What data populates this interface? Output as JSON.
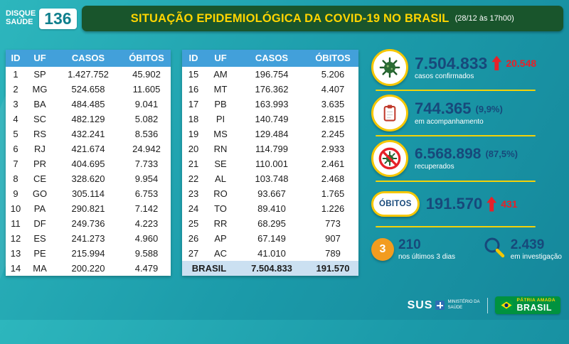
{
  "header": {
    "hotline_line1": "DISQUE",
    "hotline_line2": "SAÚDE",
    "hotline_number": "136",
    "title": "SITUAÇÃO EPIDEMIOLÓGICA DA COVID-19 NO BRASIL",
    "timestamp": "(28/12 às 17h00)"
  },
  "chart_data": {
    "type": "table",
    "title": "SITUAÇÃO EPIDEMIOLÓGICA DA COVID-19 NO BRASIL",
    "columns": [
      "ID",
      "UF",
      "CASOS",
      "ÓBITOS"
    ],
    "left_table": {
      "rows": [
        [
          "1",
          "SP",
          "1.427.752",
          "45.902"
        ],
        [
          "2",
          "MG",
          "524.658",
          "11.605"
        ],
        [
          "3",
          "BA",
          "484.485",
          "9.041"
        ],
        [
          "4",
          "SC",
          "482.129",
          "5.082"
        ],
        [
          "5",
          "RS",
          "432.241",
          "8.536"
        ],
        [
          "6",
          "RJ",
          "421.674",
          "24.942"
        ],
        [
          "7",
          "PR",
          "404.695",
          "7.733"
        ],
        [
          "8",
          "CE",
          "328.620",
          "9.954"
        ],
        [
          "9",
          "GO",
          "305.114",
          "6.753"
        ],
        [
          "10",
          "PA",
          "290.821",
          "7.142"
        ],
        [
          "11",
          "DF",
          "249.736",
          "4.223"
        ],
        [
          "12",
          "ES",
          "241.273",
          "4.960"
        ],
        [
          "13",
          "PE",
          "215.994",
          "9.588"
        ],
        [
          "14",
          "MA",
          "200.220",
          "4.479"
        ]
      ]
    },
    "right_table": {
      "rows": [
        [
          "15",
          "AM",
          "196.754",
          "5.206"
        ],
        [
          "16",
          "MT",
          "176.362",
          "4.407"
        ],
        [
          "17",
          "PB",
          "163.993",
          "3.635"
        ],
        [
          "18",
          "PI",
          "140.749",
          "2.815"
        ],
        [
          "19",
          "MS",
          "129.484",
          "2.245"
        ],
        [
          "20",
          "RN",
          "114.799",
          "2.933"
        ],
        [
          "21",
          "SE",
          "110.001",
          "2.461"
        ],
        [
          "22",
          "AL",
          "103.748",
          "2.468"
        ],
        [
          "23",
          "RO",
          "93.667",
          "1.765"
        ],
        [
          "24",
          "TO",
          "89.410",
          "1.226"
        ],
        [
          "25",
          "RR",
          "68.295",
          "773"
        ],
        [
          "26",
          "AP",
          "67.149",
          "907"
        ],
        [
          "27",
          "AC",
          "41.010",
          "789"
        ]
      ],
      "total": {
        "label": "BRASIL",
        "casos": "7.504.833",
        "obitos": "191.570"
      }
    },
    "summary": [
      {
        "icon": "virus-icon",
        "value": "7.504.833",
        "delta": "20.548",
        "caption": "casos confirmados"
      },
      {
        "icon": "clipboard-icon",
        "value": "744.365",
        "percent": "(9,9%)",
        "caption": "em acompanhamento"
      },
      {
        "icon": "recovered-icon",
        "value": "6.568.898",
        "percent": "(87,5%)",
        "caption": "recuperados"
      },
      {
        "icon": "obitos-badge",
        "label": "ÓBITOS",
        "value": "191.570",
        "delta": "431"
      },
      {
        "icon": "last-3-days-icon",
        "badge": "3",
        "value": "210",
        "caption": "nos últimos 3 dias"
      },
      {
        "icon": "search-icon",
        "value": "2.439",
        "caption": "em investigação"
      }
    ]
  },
  "footer": {
    "sus": "SUS",
    "ministry": "MINISTÉRIO DA SAÚDE",
    "motto": "PÁTRIA AMADA",
    "brand": "BRASIL"
  },
  "colors": {
    "accent_yellow": "#ffd500",
    "navy": "#17497b",
    "red": "#e62129",
    "teal_background": "#1f9fae",
    "header_green": "#19552c",
    "table_header_blue": "#42a0da",
    "total_row_blue": "#cbe0f1"
  }
}
